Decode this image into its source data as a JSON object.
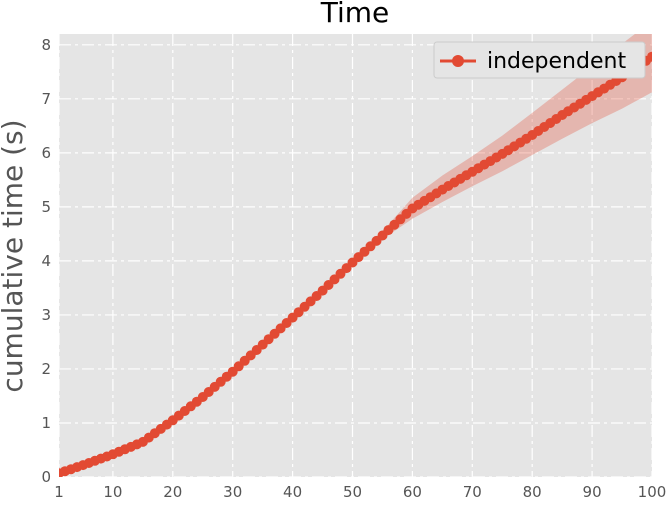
{
  "chart_data": {
    "type": "line",
    "title": "Time",
    "xlabel": "",
    "ylabel": "cumulative time (s)",
    "xlim": [
      1,
      100
    ],
    "ylim": [
      0,
      8.2
    ],
    "xticks": [
      1,
      10,
      20,
      30,
      40,
      50,
      60,
      70,
      80,
      90,
      100
    ],
    "yticks": [
      0,
      1,
      2,
      3,
      4,
      5,
      6,
      7,
      8
    ],
    "grid": true,
    "legend_position": "top-right",
    "colors": {
      "series": "#E24A33",
      "band": "#E24A33",
      "background": "#E5E5E5",
      "grid": "#FFFFFF"
    },
    "series": [
      {
        "name": "independent",
        "x": [
          1,
          5,
          10,
          15,
          20,
          25,
          30,
          35,
          40,
          45,
          50,
          55,
          60,
          65,
          70,
          75,
          80,
          85,
          90,
          95,
          100
        ],
        "y": [
          0.07,
          0.22,
          0.42,
          0.65,
          1.05,
          1.48,
          1.95,
          2.45,
          2.95,
          3.45,
          3.97,
          4.47,
          4.97,
          5.32,
          5.65,
          5.98,
          6.33,
          6.7,
          7.05,
          7.4,
          7.78
        ],
        "lower": [
          0.07,
          0.22,
          0.42,
          0.65,
          1.05,
          1.48,
          1.95,
          2.45,
          2.95,
          3.45,
          3.95,
          4.4,
          4.78,
          5.09,
          5.38,
          5.66,
          5.96,
          6.26,
          6.55,
          6.82,
          7.12
        ],
        "upper": [
          0.07,
          0.22,
          0.42,
          0.65,
          1.05,
          1.48,
          1.95,
          2.45,
          2.95,
          3.45,
          3.99,
          4.55,
          5.17,
          5.58,
          5.94,
          6.32,
          6.74,
          7.17,
          7.6,
          8.02,
          8.44
        ]
      }
    ]
  }
}
